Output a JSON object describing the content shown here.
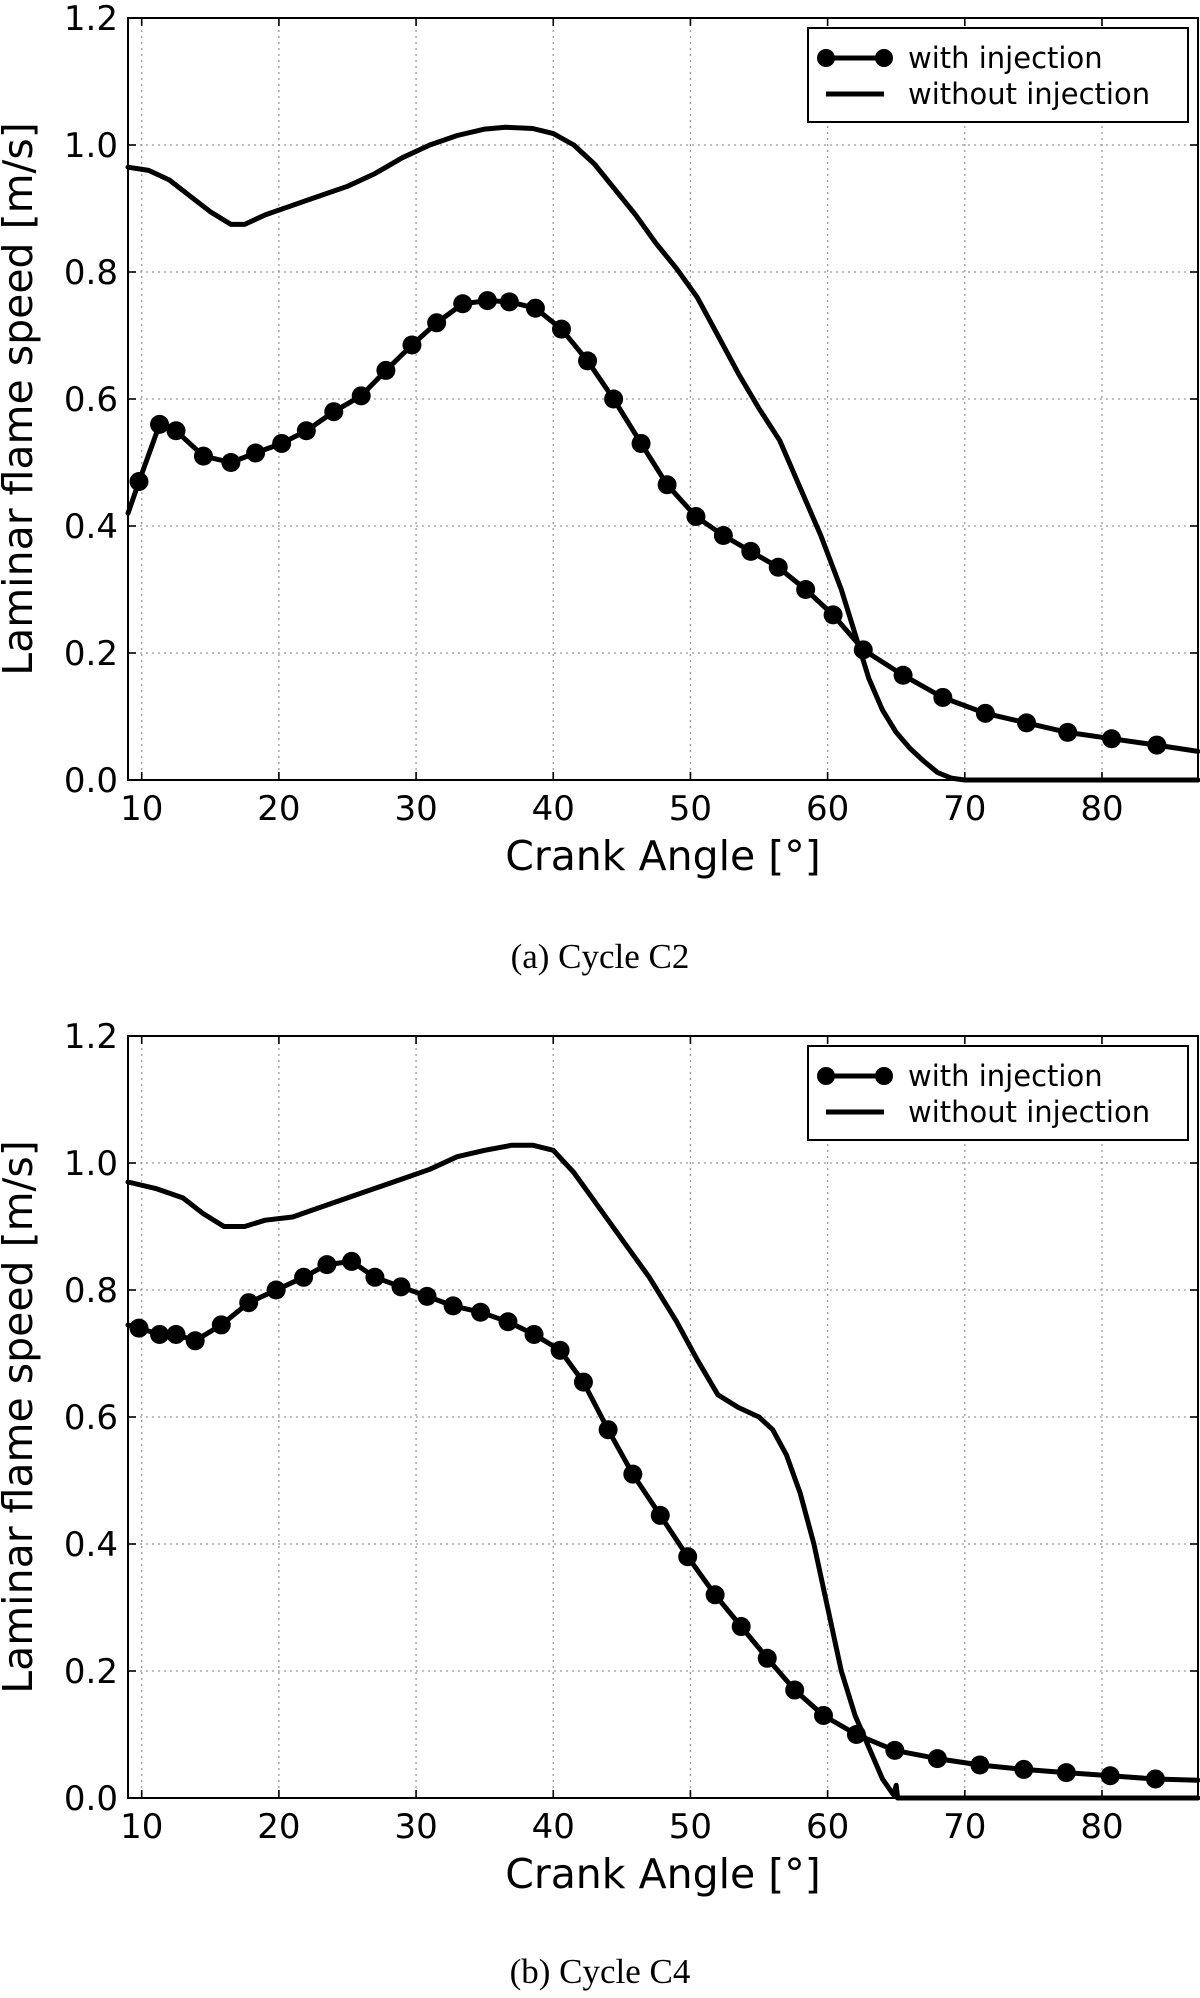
{
  "chart_data": [
    {
      "type": "line",
      "caption": "(a) Cycle C2",
      "xlabel": "Crank Angle [°]",
      "ylabel": "Laminar flame speed [m/s]",
      "xlim": [
        9,
        87
      ],
      "ylim": [
        0,
        1.2
      ],
      "xticks": [
        10,
        20,
        30,
        40,
        50,
        60,
        70,
        80
      ],
      "yticks": [
        0.0,
        0.2,
        0.4,
        0.6,
        0.8,
        1.0,
        1.2
      ],
      "ytick_labels": [
        "0.0",
        "0.2",
        "0.4",
        "0.6",
        "0.8",
        "1.0",
        "1.2"
      ],
      "grid": true,
      "legend_position": "top-right",
      "series": [
        {
          "name": "with injection",
          "marker": "circle",
          "points": [
            [
              9,
              0.42
            ],
            [
              9.8,
              0.47
            ],
            [
              11.3,
              0.56
            ],
            [
              12.5,
              0.55
            ],
            [
              14.5,
              0.51
            ],
            [
              16.5,
              0.5
            ],
            [
              18.3,
              0.515
            ],
            [
              20.2,
              0.53
            ],
            [
              22,
              0.55
            ],
            [
              24,
              0.58
            ],
            [
              26,
              0.605
            ],
            [
              27.8,
              0.645
            ],
            [
              29.7,
              0.685
            ],
            [
              31.5,
              0.72
            ],
            [
              33.4,
              0.75
            ],
            [
              35.2,
              0.755
            ],
            [
              36.8,
              0.753
            ],
            [
              38.7,
              0.743
            ],
            [
              40.6,
              0.71
            ],
            [
              42.5,
              0.66
            ],
            [
              44.4,
              0.6
            ],
            [
              46.4,
              0.53
            ],
            [
              48.3,
              0.465
            ],
            [
              50.4,
              0.415
            ],
            [
              52.4,
              0.385
            ],
            [
              54.4,
              0.36
            ],
            [
              56.4,
              0.335
            ],
            [
              58.4,
              0.3
            ],
            [
              60.4,
              0.26
            ],
            [
              62.6,
              0.205
            ],
            [
              65.5,
              0.165
            ],
            [
              68.4,
              0.13
            ],
            [
              71.5,
              0.105
            ],
            [
              74.5,
              0.09
            ],
            [
              77.5,
              0.075
            ],
            [
              80.7,
              0.065
            ],
            [
              84,
              0.055
            ],
            [
              87,
              0.045
            ]
          ]
        },
        {
          "name": "without injection",
          "marker": "none",
          "points": [
            [
              9,
              0.965
            ],
            [
              10.5,
              0.96
            ],
            [
              12,
              0.945
            ],
            [
              13.5,
              0.92
            ],
            [
              15,
              0.895
            ],
            [
              16.5,
              0.875
            ],
            [
              17.5,
              0.875
            ],
            [
              19,
              0.89
            ],
            [
              21,
              0.905
            ],
            [
              23,
              0.92
            ],
            [
              25,
              0.935
            ],
            [
              27,
              0.955
            ],
            [
              29,
              0.98
            ],
            [
              31,
              1.0
            ],
            [
              33,
              1.015
            ],
            [
              35,
              1.025
            ],
            [
              36.5,
              1.028
            ],
            [
              38.5,
              1.026
            ],
            [
              40,
              1.018
            ],
            [
              41.5,
              1.0
            ],
            [
              43,
              0.97
            ],
            [
              44.5,
              0.93
            ],
            [
              46,
              0.89
            ],
            [
              47.5,
              0.845
            ],
            [
              49,
              0.805
            ],
            [
              50.5,
              0.76
            ],
            [
              52,
              0.7
            ],
            [
              53.5,
              0.64
            ],
            [
              55,
              0.585
            ],
            [
              56.5,
              0.535
            ],
            [
              58,
              0.46
            ],
            [
              59.5,
              0.385
            ],
            [
              61,
              0.3
            ],
            [
              62,
              0.23
            ],
            [
              63,
              0.16
            ],
            [
              64,
              0.11
            ],
            [
              65,
              0.075
            ],
            [
              66,
              0.05
            ],
            [
              67,
              0.03
            ],
            [
              68,
              0.012
            ],
            [
              69,
              0.003
            ],
            [
              70,
              0.0
            ],
            [
              87,
              0.0
            ]
          ]
        }
      ]
    },
    {
      "type": "line",
      "caption": "(b) Cycle C4",
      "xlabel": "Crank Angle [°]",
      "ylabel": "Laminar flame speed [m/s]",
      "xlim": [
        9,
        87
      ],
      "ylim": [
        0,
        1.2
      ],
      "xticks": [
        10,
        20,
        30,
        40,
        50,
        60,
        70,
        80
      ],
      "yticks": [
        0.0,
        0.2,
        0.4,
        0.6,
        0.8,
        1.0,
        1.2
      ],
      "ytick_labels": [
        "0.0",
        "0.2",
        "0.4",
        "0.6",
        "0.8",
        "1.0",
        "1.2"
      ],
      "grid": true,
      "legend_position": "top-right",
      "series": [
        {
          "name": "with injection",
          "marker": "circle",
          "points": [
            [
              9,
              0.745
            ],
            [
              9.8,
              0.74
            ],
            [
              11.3,
              0.73
            ],
            [
              12.5,
              0.73
            ],
            [
              13.9,
              0.72
            ],
            [
              15.8,
              0.745
            ],
            [
              17.8,
              0.78
            ],
            [
              19.8,
              0.8
            ],
            [
              21.8,
              0.82
            ],
            [
              23.5,
              0.84
            ],
            [
              25.3,
              0.845
            ],
            [
              27,
              0.82
            ],
            [
              28.9,
              0.805
            ],
            [
              30.8,
              0.79
            ],
            [
              32.7,
              0.775
            ],
            [
              34.7,
              0.765
            ],
            [
              36.7,
              0.75
            ],
            [
              38.6,
              0.73
            ],
            [
              40.5,
              0.705
            ],
            [
              42.2,
              0.655
            ],
            [
              44,
              0.58
            ],
            [
              45.8,
              0.51
            ],
            [
              47.8,
              0.445
            ],
            [
              49.8,
              0.38
            ],
            [
              51.8,
              0.32
            ],
            [
              53.7,
              0.27
            ],
            [
              55.6,
              0.22
            ],
            [
              57.6,
              0.17
            ],
            [
              59.7,
              0.13
            ],
            [
              62.1,
              0.1
            ],
            [
              64.9,
              0.075
            ],
            [
              68,
              0.062
            ],
            [
              71.1,
              0.052
            ],
            [
              74.3,
              0.045
            ],
            [
              77.4,
              0.04
            ],
            [
              80.6,
              0.035
            ],
            [
              83.9,
              0.03
            ],
            [
              87,
              0.028
            ]
          ]
        },
        {
          "name": "without injection",
          "marker": "none",
          "points": [
            [
              9,
              0.97
            ],
            [
              11,
              0.96
            ],
            [
              13,
              0.945
            ],
            [
              14.5,
              0.92
            ],
            [
              16,
              0.9
            ],
            [
              17.5,
              0.9
            ],
            [
              19,
              0.91
            ],
            [
              21,
              0.915
            ],
            [
              23,
              0.93
            ],
            [
              25,
              0.945
            ],
            [
              27,
              0.96
            ],
            [
              29,
              0.975
            ],
            [
              31,
              0.99
            ],
            [
              33,
              1.01
            ],
            [
              35,
              1.02
            ],
            [
              37,
              1.028
            ],
            [
              38.5,
              1.028
            ],
            [
              40,
              1.02
            ],
            [
              41.5,
              0.985
            ],
            [
              43,
              0.94
            ],
            [
              45,
              0.88
            ],
            [
              47,
              0.82
            ],
            [
              49,
              0.75
            ],
            [
              50.5,
              0.69
            ],
            [
              52,
              0.635
            ],
            [
              53.5,
              0.615
            ],
            [
              55,
              0.6
            ],
            [
              56,
              0.58
            ],
            [
              57,
              0.54
            ],
            [
              58,
              0.48
            ],
            [
              59,
              0.4
            ],
            [
              60,
              0.3
            ],
            [
              61,
              0.2
            ],
            [
              62,
              0.13
            ],
            [
              63,
              0.08
            ],
            [
              64,
              0.03
            ],
            [
              64.8,
              0.005
            ],
            [
              65,
              0.02
            ],
            [
              65.1,
              0.0
            ],
            [
              87,
              0.0
            ]
          ]
        }
      ]
    }
  ]
}
